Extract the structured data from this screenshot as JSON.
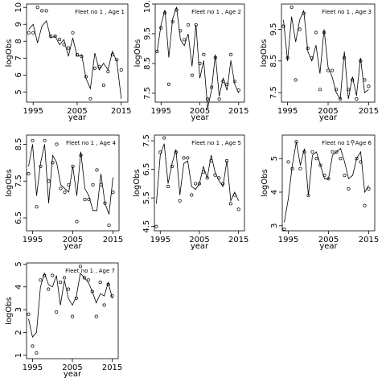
{
  "chart_data": [
    {
      "type": "scatter",
      "title": "Fleet no 1 , Age 1",
      "xlabel": "year",
      "ylabel": "logObs",
      "xlim": [
        1993.5,
        2016.5
      ],
      "ylim": [
        4.4,
        10.2
      ],
      "xticks": [
        1995,
        2005,
        2015
      ],
      "yticks": [
        5,
        6,
        7,
        8,
        9,
        10
      ],
      "x": [
        1994,
        1995,
        1996,
        1997,
        1998,
        1999,
        2000,
        2001,
        2002,
        2003,
        2004,
        2005,
        2006,
        2007,
        2008,
        2009,
        2010,
        2011,
        2012,
        2013,
        2014,
        2015
      ],
      "observed": [
        8.5,
        8.5,
        10.0,
        9.8,
        9.8,
        8.3,
        8.3,
        8.1,
        7.8,
        7.6,
        8.5,
        7.2,
        7.1,
        5.9,
        4.6,
        6.4,
        6.5,
        5.4,
        6.2,
        7.2,
        6.9,
        6.3
      ],
      "fitted": [
        8.7,
        9.0,
        7.9,
        8.9,
        9.2,
        8.2,
        8.3,
        7.8,
        8.1,
        7.1,
        8.2,
        7.1,
        7.2,
        5.8,
        5.2,
        7.3,
        6.3,
        6.7,
        6.3,
        7.4,
        6.8,
        4.6
      ]
    },
    {
      "type": "scatter",
      "title": "Fleet no 1 , Age 2",
      "xlabel": "year",
      "ylabel": "logObs",
      "xlim": [
        1993.5,
        2016.5
      ],
      "ylim": [
        7.2,
        10.5
      ],
      "xticks": [
        1995,
        2005,
        2015
      ],
      "yticks": [
        7.5,
        8.5,
        9.5,
        10.5
      ],
      "x": [
        1994,
        1995,
        1996,
        1997,
        1998,
        1999,
        2000,
        2001,
        2002,
        2003,
        2004,
        2005,
        2006,
        2007,
        2008,
        2009,
        2010,
        2011,
        2012,
        2013,
        2014,
        2015
      ],
      "observed": [
        8.9,
        9.7,
        10.2,
        7.8,
        9.9,
        10.3,
        9.6,
        9.3,
        9.8,
        8.1,
        9.8,
        8.5,
        8.8,
        7.3,
        7.7,
        8.7,
        7.3,
        7.9,
        7.8,
        8.8,
        7.9,
        7.6
      ],
      "fitted": [
        8.9,
        9.8,
        10.3,
        8.7,
        10.0,
        10.4,
        9.3,
        9.1,
        9.5,
        8.4,
        9.8,
        8.0,
        8.6,
        7.0,
        7.6,
        8.8,
        7.4,
        8.0,
        7.6,
        8.6,
        7.8,
        7.5
      ]
    },
    {
      "type": "scatter",
      "title": "Fleet no 1 , Age 3",
      "xlabel": "year",
      "ylabel": "logObs",
      "xlim": [
        1993.5,
        2016.5
      ],
      "ylim": [
        7.2,
        10.3
      ],
      "xticks": [
        1995,
        2005,
        2015
      ],
      "yticks": [
        7.5,
        8.5,
        9.5
      ],
      "x": [
        1994,
        1995,
        1996,
        1997,
        1998,
        1999,
        2000,
        2001,
        2002,
        2003,
        2004,
        2005,
        2006,
        2007,
        2008,
        2009,
        2010,
        2011,
        2012,
        2013,
        2014,
        2015
      ],
      "observed": [
        9.6,
        8.6,
        10.2,
        7.9,
        9.5,
        10.0,
        8.9,
        8.6,
        9.4,
        7.6,
        9.4,
        8.2,
        8.2,
        7.6,
        7.3,
        8.6,
        7.6,
        7.9,
        7.3,
        8.5,
        7.9,
        7.7
      ],
      "fitted": [
        9.8,
        8.5,
        9.9,
        9.1,
        9.8,
        10.1,
        8.8,
        8.5,
        9.0,
        8.1,
        9.5,
        8.3,
        8.0,
        7.5,
        7.3,
        8.8,
        7.3,
        8.0,
        7.4,
        8.6,
        7.5,
        7.6
      ]
    },
    {
      "type": "scatter",
      "title": "Fleet no 1 , Age 4",
      "xlabel": "year",
      "ylabel": "logObs",
      "xlim": [
        1993.5,
        2016.5
      ],
      "ylim": [
        6.15,
        8.75
      ],
      "xticks": [
        1995,
        2005,
        2015
      ],
      "yticks": [
        6.5,
        7.5,
        8.5
      ],
      "x": [
        1994,
        1995,
        1996,
        1997,
        1998,
        1999,
        2000,
        2001,
        2002,
        2003,
        2004,
        2005,
        2006,
        2007,
        2008,
        2009,
        2010,
        2011,
        2012,
        2013,
        2014,
        2015
      ],
      "observed": [
        7.7,
        8.6,
        6.8,
        7.9,
        8.6,
        7.5,
        8.0,
        8.5,
        7.3,
        7.2,
        7.4,
        7.9,
        6.4,
        8.2,
        7.0,
        7.0,
        7.4,
        7.8,
        7.4,
        6.9,
        6.3,
        7.2
      ],
      "fitted": [
        7.9,
        8.5,
        7.1,
        8.0,
        8.5,
        6.9,
        8.2,
        8.0,
        7.4,
        7.3,
        7.2,
        7.9,
        7.1,
        8.3,
        7.3,
        7.1,
        6.7,
        6.7,
        7.7,
        6.9,
        6.6,
        7.6
      ]
    },
    {
      "type": "scatter",
      "title": "Fleet no 1 , Age 5",
      "xlabel": "year",
      "ylabel": "logObs",
      "xlim": [
        1993.5,
        2016.5
      ],
      "ylim": [
        4.35,
        7.7
      ],
      "xticks": [
        1995,
        2005,
        2015
      ],
      "yticks": [
        4.5,
        5.5,
        6.5,
        7.5
      ],
      "x": [
        1994,
        1995,
        1996,
        1997,
        1998,
        1999,
        2000,
        2001,
        2002,
        2003,
        2004,
        2005,
        2006,
        2007,
        2008,
        2009,
        2010,
        2011,
        2012,
        2013,
        2014,
        2015
      ],
      "observed": [
        4.5,
        7.1,
        7.6,
        5.9,
        6.6,
        7.1,
        5.4,
        6.9,
        6.9,
        5.6,
        6.0,
        6.0,
        6.4,
        6.2,
        6.8,
        6.3,
        6.2,
        6.0,
        6.8,
        5.3,
        5.6,
        5.1
      ],
      "fitted": [
        5.3,
        7.0,
        7.4,
        6.0,
        6.7,
        7.2,
        5.6,
        6.7,
        6.8,
        5.9,
        5.8,
        6.0,
        6.6,
        6.2,
        7.0,
        6.4,
        6.1,
        5.9,
        6.8,
        5.4,
        5.7,
        5.4
      ]
    },
    {
      "type": "scatter",
      "title": "Fleet no 1 , Age 6",
      "xlabel": "year",
      "ylabel": "logObs",
      "xlim": [
        1993.5,
        2016.5
      ],
      "ylim": [
        2.85,
        5.7
      ],
      "xticks": [
        1995,
        2005,
        2015
      ],
      "yticks": [
        3.0,
        4.0,
        5.0
      ],
      "x": [
        1994,
        1995,
        1996,
        1997,
        1998,
        1999,
        2000,
        2001,
        2002,
        2003,
        2004,
        2005,
        2006,
        2007,
        2008,
        2009,
        2010,
        2011,
        2012,
        2013,
        2014,
        2015
      ],
      "observed": [
        2.9,
        4.9,
        4.7,
        5.5,
        4.7,
        5.2,
        3.9,
        5.2,
        5.0,
        4.8,
        4.5,
        4.4,
        5.2,
        5.2,
        5.0,
        4.5,
        4.1,
        5.5,
        5.0,
        4.9,
        3.6,
        4.1
      ],
      "fitted": [
        3.1,
        3.8,
        4.8,
        5.5,
        4.8,
        5.3,
        3.9,
        5.1,
        5.2,
        4.8,
        4.4,
        4.4,
        5.1,
        5.2,
        5.3,
        4.9,
        4.4,
        4.5,
        5.0,
        5.2,
        4.0,
        4.2
      ]
    },
    {
      "type": "scatter",
      "title": "Fleet no 1 , Age 7",
      "xlabel": "year",
      "ylabel": "logObs",
      "xlim": [
        1993.5,
        2016.5
      ],
      "ylim": [
        0.85,
        5.05
      ],
      "xticks": [
        1995,
        2005,
        2015
      ],
      "yticks": [
        1,
        2,
        3,
        4,
        5
      ],
      "x": [
        1994,
        1995,
        1996,
        1997,
        1998,
        1999,
        2000,
        2001,
        2002,
        2003,
        2004,
        2005,
        2006,
        2007,
        2008,
        2009,
        2010,
        2011,
        2012,
        2013,
        2014,
        2015
      ],
      "observed": [
        2.8,
        1.4,
        1.1,
        4.3,
        4.5,
        3.9,
        4.5,
        2.9,
        4.2,
        4.4,
        3.9,
        2.7,
        3.5,
        4.9,
        4.4,
        4.3,
        3.8,
        2.7,
        4.2,
        3.2,
        4.1,
        3.6
      ],
      "fitted": [
        2.6,
        1.8,
        2.0,
        4.0,
        4.6,
        4.1,
        4.0,
        4.5,
        3.2,
        4.3,
        3.5,
        3.2,
        3.6,
        4.6,
        4.4,
        4.2,
        3.8,
        3.3,
        3.7,
        3.6,
        4.2,
        3.5
      ]
    }
  ]
}
